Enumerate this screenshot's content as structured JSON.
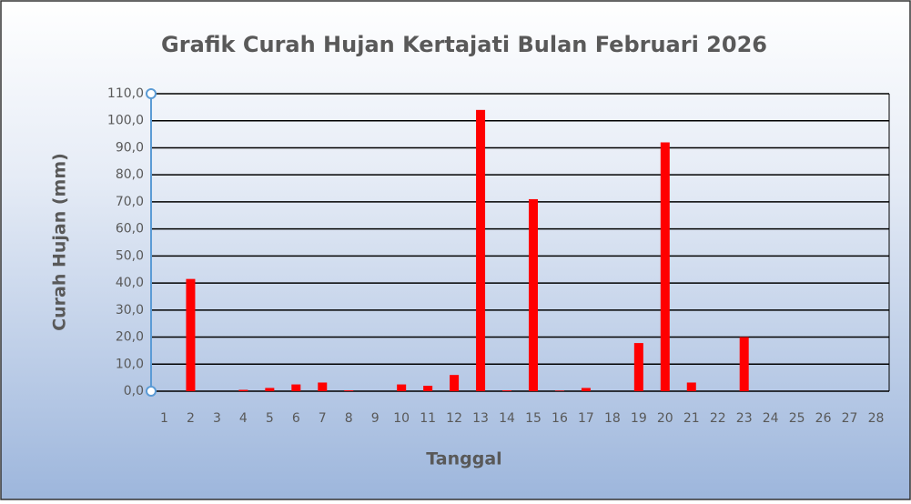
{
  "chart_data": {
    "type": "bar",
    "title": "Grafik Curah Hujan Kertajati Bulan Februari 2026",
    "x_label": "Tanggal",
    "y_label": "Curah Hujan (mm)",
    "categories": [
      "1",
      "2",
      "3",
      "4",
      "5",
      "6",
      "7",
      "8",
      "9",
      "10",
      "11",
      "12",
      "13",
      "14",
      "15",
      "16",
      "17",
      "18",
      "19",
      "20",
      "21",
      "22",
      "23",
      "24",
      "25",
      "26",
      "27",
      "28"
    ],
    "values": [
      0,
      41.5,
      0,
      0.5,
      1.2,
      2.5,
      3.2,
      0.3,
      0,
      2.5,
      2,
      6,
      104,
      0.3,
      71,
      0.2,
      1.2,
      0,
      17.8,
      92,
      3.2,
      0,
      20,
      0,
      0,
      0,
      0,
      0
    ],
    "color": "#ff0000",
    "ylim": [
      0,
      110
    ],
    "yticks": [
      {
        "value": 0,
        "label": "0,0"
      },
      {
        "value": 10,
        "label": "10,0"
      },
      {
        "value": 20,
        "label": "20,0"
      },
      {
        "value": 30,
        "label": "30,0"
      },
      {
        "value": 40,
        "label": "40,0"
      },
      {
        "value": 50,
        "label": "50,0"
      },
      {
        "value": 60,
        "label": "60,0"
      },
      {
        "value": 70,
        "label": "70,0"
      },
      {
        "value": 80,
        "label": "80,0"
      },
      {
        "value": 90,
        "label": "90,0"
      },
      {
        "value": 100,
        "label": "100,0"
      },
      {
        "value": 110,
        "label": "110,0"
      }
    ],
    "grid": true
  }
}
